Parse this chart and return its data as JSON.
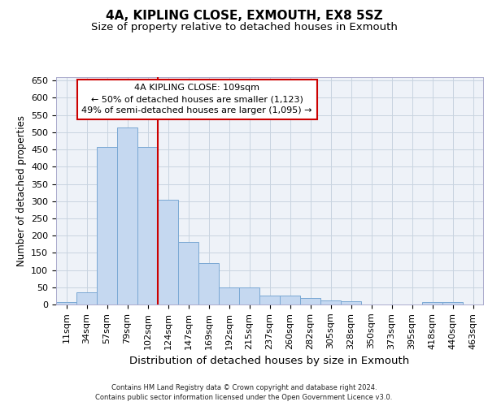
{
  "title_line1": "4A, KIPLING CLOSE, EXMOUTH, EX8 5SZ",
  "title_line2": "Size of property relative to detached houses in Exmouth",
  "xlabel": "Distribution of detached houses by size in Exmouth",
  "ylabel": "Number of detached properties",
  "categories": [
    "11sqm",
    "34sqm",
    "57sqm",
    "79sqm",
    "102sqm",
    "124sqm",
    "147sqm",
    "169sqm",
    "192sqm",
    "215sqm",
    "237sqm",
    "260sqm",
    "282sqm",
    "305sqm",
    "328sqm",
    "350sqm",
    "373sqm",
    "395sqm",
    "418sqm",
    "440sqm",
    "463sqm"
  ],
  "values": [
    7,
    35,
    458,
    515,
    458,
    305,
    182,
    120,
    50,
    50,
    27,
    27,
    20,
    12,
    9,
    0,
    0,
    0,
    7,
    7,
    0
  ],
  "bar_color": "#c5d8f0",
  "bar_edge_color": "#7aa8d4",
  "vline_color": "#cc0000",
  "vline_pos": 4.5,
  "annotation_title": "4A KIPLING CLOSE: 109sqm",
  "annotation_line1": "← 50% of detached houses are smaller (1,123)",
  "annotation_line2": "49% of semi-detached houses are larger (1,095) →",
  "annotation_box_facecolor": "#ffffff",
  "annotation_box_edgecolor": "#cc0000",
  "ylim": [
    0,
    660
  ],
  "yticks": [
    0,
    50,
    100,
    150,
    200,
    250,
    300,
    350,
    400,
    450,
    500,
    550,
    600,
    650
  ],
  "grid_color": "#c8d4e0",
  "plot_bg_color": "#eef2f8",
  "fig_bg_color": "#ffffff",
  "footer_line1": "Contains HM Land Registry data © Crown copyright and database right 2024.",
  "footer_line2": "Contains public sector information licensed under the Open Government Licence v3.0.",
  "title1_fontsize": 11,
  "title2_fontsize": 9.5,
  "tick_fontsize": 8,
  "ylabel_fontsize": 8.5,
  "xlabel_fontsize": 9.5,
  "ann_fontsize": 8,
  "footer_fontsize": 6
}
